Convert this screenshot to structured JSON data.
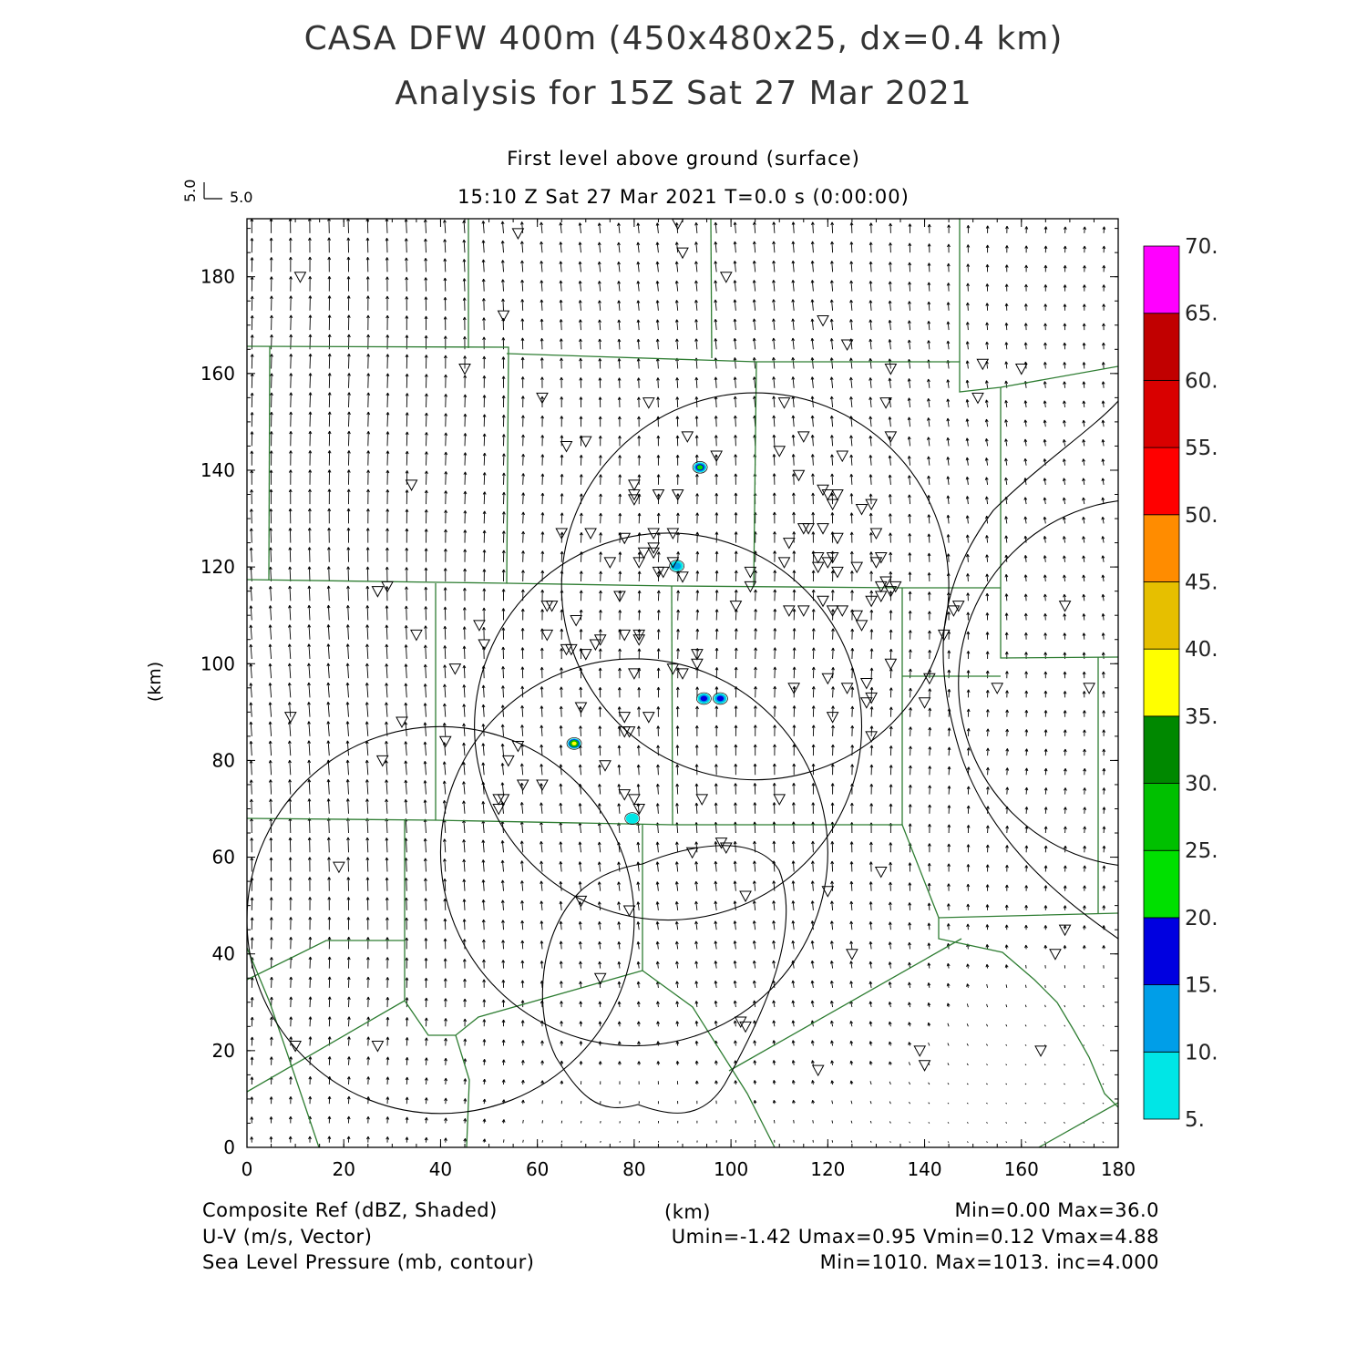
{
  "header": {
    "title_line1": "CASA DFW 400m (450x480x25, dx=0.4 km)",
    "title_line2": "Analysis for 15Z Sat 27 Mar 2021",
    "level": "First level above ground (surface)",
    "time": "15:10 Z Sat 27 Mar 2021    T=0.0 s (0:00:00)"
  },
  "vector_scale": {
    "x_label": "5.0",
    "y_label": "5.0"
  },
  "axes": {
    "xlabel": "(km)",
    "ylabel": "(km)",
    "xlim": [
      0,
      180
    ],
    "ylim": [
      0,
      192
    ],
    "x_ticks": [
      "0",
      "20",
      "40",
      "60",
      "80",
      "100",
      "120",
      "140",
      "160",
      "180"
    ],
    "y_ticks": [
      "0",
      "20",
      "40",
      "60",
      "80",
      "100",
      "120",
      "140",
      "160",
      "180"
    ]
  },
  "colorbar": {
    "labels": [
      "5.",
      "10.",
      "15.",
      "20.",
      "25.",
      "30.",
      "35.",
      "40.",
      "45.",
      "50.",
      "55.",
      "60.",
      "65.",
      "70."
    ],
    "colors": [
      "#00e6e6",
      "#009ee8",
      "#0000e0",
      "#00e000",
      "#00c000",
      "#008800",
      "#ffff00",
      "#e6bf00",
      "#ff8c00",
      "#ff0000",
      "#d90000",
      "#c10000",
      "#ff00ff"
    ]
  },
  "footer": {
    "left1": "Composite Ref (dBZ, Shaded)",
    "left2": "U-V (m/s, Vector)",
    "left3": "Sea Level Pressure (mb, contour)",
    "center": "(km)",
    "right1": "Min=0.00 Max=36.0",
    "right2": "Umin=-1.42 Umax=0.95 Vmin=0.12 Vmax=4.88",
    "right3": "Min=1010. Max=1013. inc=4.000"
  },
  "colors": {
    "boundaries": "#2e7d32",
    "contours": "#000000",
    "frame": "#000000"
  },
  "chart_data": {
    "type": "map",
    "radar_rings": [
      {
        "cx": 105,
        "cy": 116,
        "r": 40
      },
      {
        "cx": 87,
        "cy": 87,
        "r": 40
      },
      {
        "cx": 80,
        "cy": 61,
        "r": 40
      },
      {
        "cx": 40,
        "cy": 47,
        "r": 40
      },
      {
        "cx": 185,
        "cy": 96,
        "r": 38
      }
    ],
    "reflectivity_cells": [
      {
        "x": 93.6,
        "y": 140.6,
        "dbz": 20
      },
      {
        "x": 88.8,
        "y": 120.2,
        "dbz": 10
      },
      {
        "x": 94.4,
        "y": 92.8,
        "dbz": 15
      },
      {
        "x": 97.8,
        "y": 92.8,
        "dbz": 15
      },
      {
        "x": 67.6,
        "y": 83.5,
        "dbz": 36
      },
      {
        "x": 79.6,
        "y": 68.0,
        "dbz": 8
      }
    ],
    "stations": [
      [
        11,
        180
      ],
      [
        56,
        189
      ],
      [
        89,
        191
      ],
      [
        90,
        185
      ],
      [
        99,
        180
      ],
      [
        53,
        172
      ],
      [
        119,
        171
      ],
      [
        124,
        166
      ],
      [
        45,
        161
      ],
      [
        61,
        155
      ],
      [
        83,
        154
      ],
      [
        133,
        161
      ],
      [
        132,
        154
      ],
      [
        152,
        162
      ],
      [
        160,
        161
      ],
      [
        151,
        155
      ],
      [
        34,
        137
      ],
      [
        66,
        145
      ],
      [
        70,
        146
      ],
      [
        91,
        147
      ],
      [
        97,
        143
      ],
      [
        111,
        154
      ],
      [
        110,
        144
      ],
      [
        115,
        147
      ],
      [
        114,
        139
      ],
      [
        123,
        143
      ],
      [
        133,
        147
      ],
      [
        80,
        137
      ],
      [
        80,
        135
      ],
      [
        85,
        135
      ],
      [
        89,
        135
      ],
      [
        80,
        134
      ],
      [
        119,
        136
      ],
      [
        120,
        135
      ],
      [
        122,
        135
      ],
      [
        121,
        133
      ],
      [
        127,
        132
      ],
      [
        129,
        133
      ],
      [
        65,
        127
      ],
      [
        71,
        127
      ],
      [
        78,
        126
      ],
      [
        84,
        127
      ],
      [
        88,
        127
      ],
      [
        82,
        123
      ],
      [
        84,
        124
      ],
      [
        84,
        123
      ],
      [
        112,
        125
      ],
      [
        115,
        128
      ],
      [
        116,
        128
      ],
      [
        119,
        128
      ],
      [
        122,
        126
      ],
      [
        130,
        127
      ],
      [
        75,
        121
      ],
      [
        81,
        121
      ],
      [
        88,
        121
      ],
      [
        85,
        119
      ],
      [
        86,
        119
      ],
      [
        90,
        118
      ],
      [
        104,
        119
      ],
      [
        104,
        116
      ],
      [
        111,
        121
      ],
      [
        118,
        122
      ],
      [
        120,
        121
      ],
      [
        121,
        122
      ],
      [
        122,
        119
      ],
      [
        118,
        120
      ],
      [
        126,
        120
      ],
      [
        130,
        121
      ],
      [
        131,
        122
      ],
      [
        131,
        116
      ],
      [
        129,
        113
      ],
      [
        131,
        114
      ],
      [
        133,
        115
      ],
      [
        134,
        116
      ],
      [
        132,
        117
      ],
      [
        27,
        115
      ],
      [
        29,
        116
      ],
      [
        62,
        112
      ],
      [
        63,
        112
      ],
      [
        77,
        114
      ],
      [
        101,
        112
      ],
      [
        112,
        111
      ],
      [
        115,
        111
      ],
      [
        119,
        113
      ],
      [
        121,
        111
      ],
      [
        123,
        111
      ],
      [
        126,
        110
      ],
      [
        127,
        108
      ],
      [
        68,
        109
      ],
      [
        48,
        108
      ],
      [
        35,
        106
      ],
      [
        62,
        106
      ],
      [
        66,
        103
      ],
      [
        67,
        103
      ],
      [
        70,
        102
      ],
      [
        72,
        104
      ],
      [
        73,
        105
      ],
      [
        78,
        106
      ],
      [
        81,
        106
      ],
      [
        81,
        105
      ],
      [
        49,
        104
      ],
      [
        93,
        102
      ],
      [
        93,
        100
      ],
      [
        88,
        99
      ],
      [
        43,
        99
      ],
      [
        80,
        98
      ],
      [
        90,
        98
      ],
      [
        113,
        95
      ],
      [
        120,
        97
      ],
      [
        124,
        95
      ],
      [
        128,
        96
      ],
      [
        129,
        93
      ],
      [
        133,
        100
      ],
      [
        128,
        92
      ],
      [
        141,
        97
      ],
      [
        146,
        111
      ],
      [
        144,
        106
      ],
      [
        140,
        92
      ],
      [
        147,
        112
      ],
      [
        155,
        95
      ],
      [
        169,
        112
      ],
      [
        174,
        95
      ],
      [
        9,
        89
      ],
      [
        32,
        88
      ],
      [
        41,
        84
      ],
      [
        56,
        83
      ],
      [
        54,
        80
      ],
      [
        69,
        91
      ],
      [
        78,
        89
      ],
      [
        79,
        86
      ],
      [
        83,
        89
      ],
      [
        78,
        86
      ],
      [
        74,
        79
      ],
      [
        28,
        80
      ],
      [
        57,
        75
      ],
      [
        61,
        75
      ],
      [
        52,
        72
      ],
      [
        53,
        72
      ],
      [
        52,
        70
      ],
      [
        78,
        73
      ],
      [
        80,
        72
      ],
      [
        81,
        70
      ],
      [
        94,
        72
      ],
      [
        110,
        72
      ],
      [
        121,
        89
      ],
      [
        129,
        85
      ],
      [
        19,
        58
      ],
      [
        92,
        61
      ],
      [
        98,
        63
      ],
      [
        99,
        62
      ],
      [
        131,
        57
      ],
      [
        103,
        52
      ],
      [
        120,
        53
      ],
      [
        69,
        51
      ],
      [
        79,
        49
      ],
      [
        125,
        40
      ],
      [
        169,
        45
      ],
      [
        167,
        40
      ],
      [
        73,
        35
      ],
      [
        10,
        21
      ],
      [
        27,
        21
      ],
      [
        102,
        26
      ],
      [
        103,
        25
      ],
      [
        118,
        16
      ],
      [
        139,
        20
      ],
      [
        140,
        17
      ],
      [
        164,
        20
      ]
    ]
  }
}
